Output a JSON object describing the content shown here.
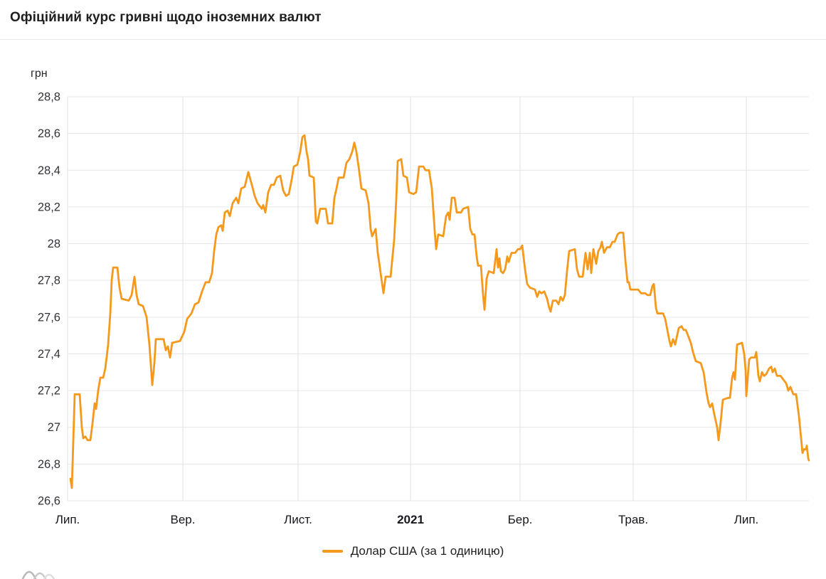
{
  "chart_data": {
    "type": "line",
    "title": "Офіційний курс гривні щодо іноземних валют",
    "ylabel": "грн",
    "xlabel": "",
    "line_color": "#F5991D",
    "grid": true,
    "legend_position": "bottom",
    "y_axis": {
      "min": 26.6,
      "max": 28.8,
      "tick_step": 0.2,
      "tick_labels": [
        "28,8",
        "28,6",
        "28,4",
        "28,2",
        "28",
        "27,8",
        "27,6",
        "27,4",
        "27,2",
        "27",
        "26,8",
        "26,6"
      ]
    },
    "x_axis": {
      "span": 1042,
      "ticks": [
        {
          "label": "Лип.",
          "pos": 0,
          "bold": false
        },
        {
          "label": "Вер.",
          "pos": 162,
          "bold": false
        },
        {
          "label": "Лист.",
          "pos": 324,
          "bold": false
        },
        {
          "label": "2021",
          "pos": 482,
          "bold": true
        },
        {
          "label": "Бер.",
          "pos": 636,
          "bold": false
        },
        {
          "label": "Трав.",
          "pos": 795,
          "bold": false
        },
        {
          "label": "Лип.",
          "pos": 954,
          "bold": false
        }
      ]
    },
    "series": [
      {
        "name": "Долар США (за 1 одиницю)",
        "points": [
          [
            4,
            26.72
          ],
          [
            6,
            26.67
          ],
          [
            10,
            27.18
          ],
          [
            17,
            27.18
          ],
          [
            20,
            27.0
          ],
          [
            22,
            26.94
          ],
          [
            25,
            26.95
          ],
          [
            28,
            26.93
          ],
          [
            32,
            26.93
          ],
          [
            35,
            27.02
          ],
          [
            38,
            27.13
          ],
          [
            40,
            27.1
          ],
          [
            43,
            27.2
          ],
          [
            46,
            27.27
          ],
          [
            50,
            27.27
          ],
          [
            53,
            27.32
          ],
          [
            57,
            27.45
          ],
          [
            60,
            27.62
          ],
          [
            62,
            27.8
          ],
          [
            64,
            27.87
          ],
          [
            70,
            27.87
          ],
          [
            73,
            27.76
          ],
          [
            76,
            27.7
          ],
          [
            86,
            27.69
          ],
          [
            90,
            27.72
          ],
          [
            94,
            27.82
          ],
          [
            97,
            27.72
          ],
          [
            100,
            27.67
          ],
          [
            106,
            27.66
          ],
          [
            111,
            27.6
          ],
          [
            115,
            27.45
          ],
          [
            119,
            27.23
          ],
          [
            122,
            27.35
          ],
          [
            124,
            27.48
          ],
          [
            135,
            27.48
          ],
          [
            138,
            27.42
          ],
          [
            141,
            27.44
          ],
          [
            144,
            27.38
          ],
          [
            147,
            27.46
          ],
          [
            158,
            27.47
          ],
          [
            164,
            27.52
          ],
          [
            168,
            27.59
          ],
          [
            174,
            27.62
          ],
          [
            179,
            27.67
          ],
          [
            184,
            27.68
          ],
          [
            189,
            27.74
          ],
          [
            194,
            27.79
          ],
          [
            199,
            27.79
          ],
          [
            203,
            27.84
          ],
          [
            206,
            27.96
          ],
          [
            209,
            28.05
          ],
          [
            212,
            28.09
          ],
          [
            216,
            28.1
          ],
          [
            218,
            28.07
          ],
          [
            221,
            28.17
          ],
          [
            225,
            28.18
          ],
          [
            228,
            28.15
          ],
          [
            232,
            28.22
          ],
          [
            237,
            28.25
          ],
          [
            240,
            28.22
          ],
          [
            244,
            28.3
          ],
          [
            249,
            28.31
          ],
          [
            254,
            28.39
          ],
          [
            259,
            28.32
          ],
          [
            263,
            28.26
          ],
          [
            267,
            28.22
          ],
          [
            273,
            28.19
          ],
          [
            275,
            28.21
          ],
          [
            278,
            28.17
          ],
          [
            282,
            28.28
          ],
          [
            286,
            28.32
          ],
          [
            290,
            28.32
          ],
          [
            294,
            28.36
          ],
          [
            299,
            28.37
          ],
          [
            303,
            28.29
          ],
          [
            307,
            28.26
          ],
          [
            311,
            28.27
          ],
          [
            315,
            28.35
          ],
          [
            318,
            28.42
          ],
          [
            323,
            28.43
          ],
          [
            327,
            28.5
          ],
          [
            330,
            28.58
          ],
          [
            333,
            28.59
          ],
          [
            336,
            28.5
          ],
          [
            338,
            28.46
          ],
          [
            340,
            28.37
          ],
          [
            346,
            28.36
          ],
          [
            349,
            28.12
          ],
          [
            351,
            28.11
          ],
          [
            355,
            28.19
          ],
          [
            363,
            28.19
          ],
          [
            366,
            28.11
          ],
          [
            372,
            28.11
          ],
          [
            375,
            28.25
          ],
          [
            378,
            28.3
          ],
          [
            381,
            28.36
          ],
          [
            388,
            28.36
          ],
          [
            392,
            28.44
          ],
          [
            396,
            28.46
          ],
          [
            400,
            28.5
          ],
          [
            403,
            28.55
          ],
          [
            406,
            28.5
          ],
          [
            409,
            28.42
          ],
          [
            413,
            28.3
          ],
          [
            419,
            28.29
          ],
          [
            423,
            28.22
          ],
          [
            426,
            28.08
          ],
          [
            428,
            28.04
          ],
          [
            433,
            28.08
          ],
          [
            436,
            27.95
          ],
          [
            440,
            27.84
          ],
          [
            444,
            27.73
          ],
          [
            447,
            27.82
          ],
          [
            454,
            27.82
          ],
          [
            459,
            28.02
          ],
          [
            462,
            28.24
          ],
          [
            464,
            28.45
          ],
          [
            469,
            28.46
          ],
          [
            472,
            28.37
          ],
          [
            477,
            28.36
          ],
          [
            480,
            28.28
          ],
          [
            486,
            28.27
          ],
          [
            490,
            28.28
          ],
          [
            494,
            28.42
          ],
          [
            500,
            28.42
          ],
          [
            503,
            28.4
          ],
          [
            508,
            28.4
          ],
          [
            512,
            28.3
          ],
          [
            516,
            28.07
          ],
          [
            518,
            27.97
          ],
          [
            521,
            28.05
          ],
          [
            528,
            28.04
          ],
          [
            532,
            28.15
          ],
          [
            535,
            28.17
          ],
          [
            537,
            28.13
          ],
          [
            540,
            28.25
          ],
          [
            544,
            28.25
          ],
          [
            547,
            28.17
          ],
          [
            553,
            28.17
          ],
          [
            556,
            28.19
          ],
          [
            563,
            28.2
          ],
          [
            566,
            28.08
          ],
          [
            569,
            28.05
          ],
          [
            572,
            28.05
          ],
          [
            575,
            27.93
          ],
          [
            577,
            27.88
          ],
          [
            581,
            27.88
          ],
          [
            584,
            27.72
          ],
          [
            586,
            27.64
          ],
          [
            589,
            27.81
          ],
          [
            592,
            27.85
          ],
          [
            599,
            27.84
          ],
          [
            603,
            27.97
          ],
          [
            605,
            27.87
          ],
          [
            607,
            27.92
          ],
          [
            609,
            27.85
          ],
          [
            612,
            27.84
          ],
          [
            615,
            27.86
          ],
          [
            618,
            27.93
          ],
          [
            620,
            27.9
          ],
          [
            624,
            27.95
          ],
          [
            629,
            27.95
          ],
          [
            633,
            27.97
          ],
          [
            636,
            27.97
          ],
          [
            639,
            27.99
          ],
          [
            643,
            27.86
          ],
          [
            646,
            27.78
          ],
          [
            650,
            27.76
          ],
          [
            657,
            27.75
          ],
          [
            660,
            27.71
          ],
          [
            663,
            27.74
          ],
          [
            666,
            27.73
          ],
          [
            670,
            27.74
          ],
          [
            674,
            27.7
          ],
          [
            677,
            27.65
          ],
          [
            679,
            27.63
          ],
          [
            682,
            27.69
          ],
          [
            687,
            27.69
          ],
          [
            690,
            27.67
          ],
          [
            693,
            27.71
          ],
          [
            696,
            27.69
          ],
          [
            699,
            27.72
          ],
          [
            702,
            27.85
          ],
          [
            705,
            27.96
          ],
          [
            713,
            27.97
          ],
          [
            716,
            27.86
          ],
          [
            719,
            27.82
          ],
          [
            724,
            27.82
          ],
          [
            728,
            27.95
          ],
          [
            731,
            27.86
          ],
          [
            734,
            27.95
          ],
          [
            736,
            27.84
          ],
          [
            739,
            27.97
          ],
          [
            743,
            27.89
          ],
          [
            746,
            27.96
          ],
          [
            749,
            27.98
          ],
          [
            751,
            28.01
          ],
          [
            754,
            27.95
          ],
          [
            758,
            27.98
          ],
          [
            762,
            27.98
          ],
          [
            766,
            28.01
          ],
          [
            769,
            28.01
          ],
          [
            773,
            28.05
          ],
          [
            776,
            28.06
          ],
          [
            781,
            28.06
          ],
          [
            784,
            27.91
          ],
          [
            787,
            27.79
          ],
          [
            789,
            27.79
          ],
          [
            791,
            27.75
          ],
          [
            802,
            27.75
          ],
          [
            806,
            27.73
          ],
          [
            812,
            27.73
          ],
          [
            815,
            27.72
          ],
          [
            819,
            27.72
          ],
          [
            822,
            27.77
          ],
          [
            824,
            27.78
          ],
          [
            827,
            27.65
          ],
          [
            829,
            27.62
          ],
          [
            837,
            27.62
          ],
          [
            840,
            27.59
          ],
          [
            843,
            27.53
          ],
          [
            846,
            27.47
          ],
          [
            848,
            27.44
          ],
          [
            851,
            27.48
          ],
          [
            854,
            27.45
          ],
          [
            859,
            27.54
          ],
          [
            863,
            27.55
          ],
          [
            866,
            27.53
          ],
          [
            869,
            27.53
          ],
          [
            873,
            27.49
          ],
          [
            876,
            27.46
          ],
          [
            879,
            27.41
          ],
          [
            883,
            27.36
          ],
          [
            890,
            27.35
          ],
          [
            894,
            27.3
          ],
          [
            898,
            27.19
          ],
          [
            901,
            27.13
          ],
          [
            903,
            27.11
          ],
          [
            906,
            27.13
          ],
          [
            909,
            27.07
          ],
          [
            913,
            27.0
          ],
          [
            915,
            26.93
          ],
          [
            918,
            27.03
          ],
          [
            921,
            27.15
          ],
          [
            928,
            27.16
          ],
          [
            931,
            27.16
          ],
          [
            934,
            27.27
          ],
          [
            936,
            27.3
          ],
          [
            938,
            27.26
          ],
          [
            941,
            27.45
          ],
          [
            948,
            27.46
          ],
          [
            951,
            27.4
          ],
          [
            953,
            27.31
          ],
          [
            954,
            27.17
          ],
          [
            956,
            27.27
          ],
          [
            958,
            27.37
          ],
          [
            961,
            27.38
          ],
          [
            966,
            27.38
          ],
          [
            968,
            27.41
          ],
          [
            971,
            27.28
          ],
          [
            973,
            27.25
          ],
          [
            976,
            27.3
          ],
          [
            979,
            27.28
          ],
          [
            982,
            27.29
          ],
          [
            986,
            27.32
          ],
          [
            989,
            27.33
          ],
          [
            991,
            27.3
          ],
          [
            994,
            27.32
          ],
          [
            997,
            27.28
          ],
          [
            1002,
            27.28
          ],
          [
            1006,
            27.26
          ],
          [
            1010,
            27.24
          ],
          [
            1013,
            27.2
          ],
          [
            1016,
            27.22
          ],
          [
            1018,
            27.2
          ],
          [
            1020,
            27.18
          ],
          [
            1024,
            27.18
          ],
          [
            1028,
            27.06
          ],
          [
            1030,
            26.98
          ],
          [
            1033,
            26.86
          ],
          [
            1035,
            26.88
          ],
          [
            1038,
            26.88
          ],
          [
            1039,
            26.9
          ],
          [
            1041,
            26.83
          ],
          [
            1042,
            26.82
          ]
        ]
      }
    ]
  },
  "colors": {
    "h_grid": "#e6e6e6",
    "v_grid": "#e2e2e2",
    "y_label": "#32323a",
    "x_label": "#17171c",
    "separator": "#e8e8e8"
  }
}
